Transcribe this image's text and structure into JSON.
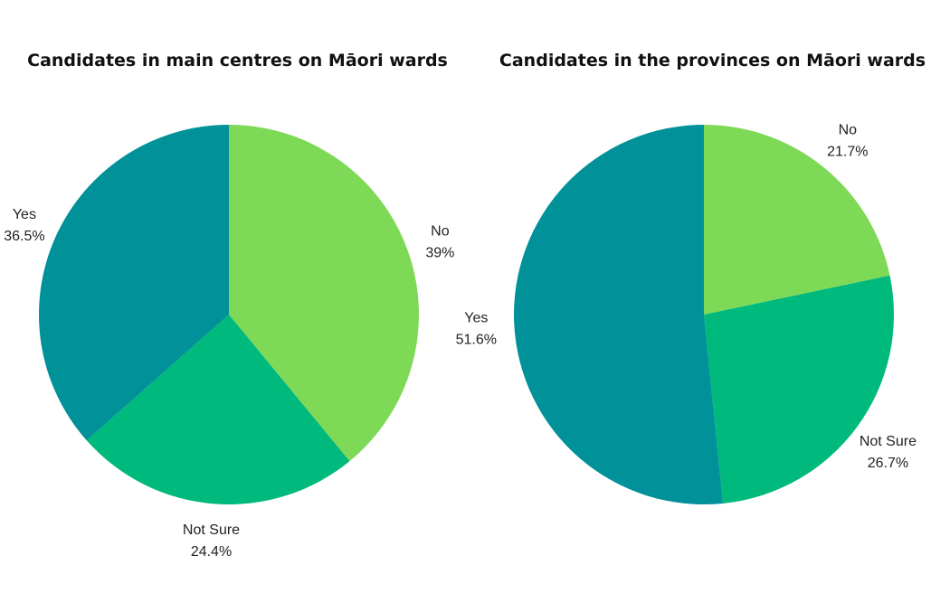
{
  "chart_data": [
    {
      "type": "pie",
      "title": "Candidates in main centres on Māori wards",
      "slices": [
        {
          "label": "No",
          "value": 39,
          "value_label": "39%",
          "color": "#7ED957"
        },
        {
          "label": "Not Sure",
          "value": 24.4,
          "value_label": "24.4%",
          "color": "#00B97C"
        },
        {
          "label": "Yes",
          "value": 36.5,
          "value_label": "36.5%",
          "color": "#009199"
        }
      ],
      "start": "12 o'clock",
      "direction": "clockwise"
    },
    {
      "type": "pie",
      "title": "Candidates in the provinces on Māori wards",
      "slices": [
        {
          "label": "No",
          "value": 21.7,
          "value_label": "21.7%",
          "color": "#7ED957"
        },
        {
          "label": "Not Sure",
          "value": 26.7,
          "value_label": "26.7%",
          "color": "#00B97C"
        },
        {
          "label": "Yes",
          "value": 51.6,
          "value_label": "51.6%",
          "color": "#009199"
        }
      ],
      "start": "12 o'clock",
      "direction": "clockwise"
    }
  ]
}
